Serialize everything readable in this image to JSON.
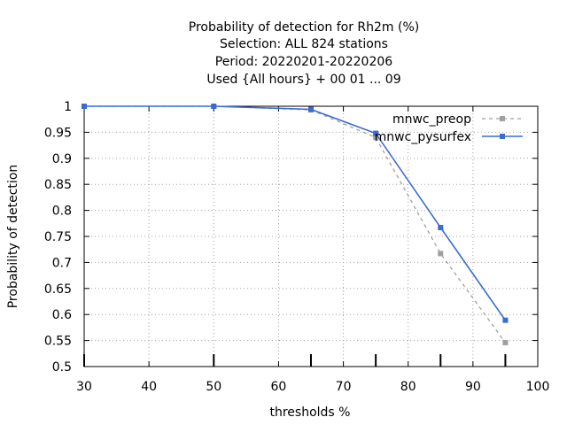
{
  "chart_data": {
    "type": "line",
    "title_lines": [
      "Probability of detection  for Rh2m (%)",
      "Selection: ALL    824 stations",
      "Period: 20220201-20220206",
      "Used {All hours} + 00 01 ... 09"
    ],
    "xlabel": "thresholds %",
    "ylabel": "Probability of detection",
    "xlim": [
      30,
      100
    ],
    "ylim": [
      0.5,
      1
    ],
    "xticks": [
      30,
      40,
      50,
      60,
      70,
      80,
      90,
      100
    ],
    "xtick_labels": [
      "30",
      "40",
      "50",
      "60",
      "70",
      "80",
      "90",
      "100"
    ],
    "yticks": [
      0.5,
      0.55,
      0.6,
      0.65,
      0.7,
      0.75,
      0.8,
      0.85,
      0.9,
      0.95,
      1
    ],
    "ytick_labels": [
      "0.5",
      "0.55",
      "0.6",
      "0.65",
      "0.7",
      "0.75",
      "0.8",
      "0.85",
      "0.9",
      "0.95",
      "1"
    ],
    "threshold_marks": [
      30,
      50,
      65,
      75,
      85,
      95
    ],
    "grid": true,
    "legend_position": "top-right",
    "series": [
      {
        "name": "mnwc_preop",
        "color": "#a0a0a0",
        "line_style": "dashed",
        "x": [
          30,
          50,
          65,
          75,
          85,
          95
        ],
        "y": [
          1.0,
          1.0,
          0.993,
          0.94,
          0.717,
          0.546
        ]
      },
      {
        "name": "mnwc_pysurfex",
        "color": "#3a6bd1",
        "line_style": "solid",
        "x": [
          30,
          50,
          65,
          75,
          85,
          95
        ],
        "y": [
          1.0,
          1.0,
          0.994,
          0.948,
          0.767,
          0.589
        ]
      }
    ]
  }
}
